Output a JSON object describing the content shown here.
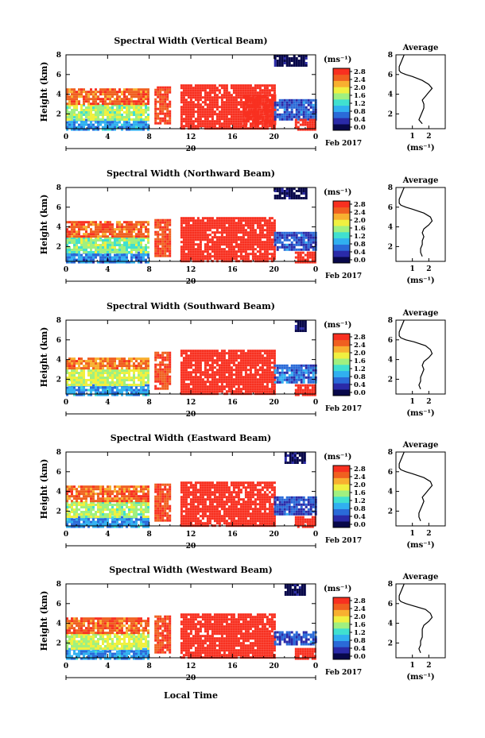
{
  "figure": {
    "panels": [
      {
        "title": "Spectral Width (Vertical Beam)",
        "avg_title": "Average"
      },
      {
        "title": "Spectral Width (Northward Beam)",
        "avg_title": "Average"
      },
      {
        "title": "Spectral Width (Southward Beam)",
        "avg_title": "Average"
      },
      {
        "title": "Spectral Width (Eastward Beam)",
        "avg_title": "Average"
      },
      {
        "title": "Spectral Width (Westward Beam)",
        "avg_title": "Average"
      }
    ],
    "ylabel": "Height (km)",
    "date_day": "20",
    "date_suffix": "Feb 2017",
    "xlabel_bottom": "Local Time",
    "colorbar_unit": "(ms⁻¹)",
    "avg_xlabel": "(ms⁻¹)",
    "colorbar_ticks": [
      "2.8",
      "2.4",
      "2.0",
      "1.6",
      "1.2",
      "0.8",
      "0.4",
      "0.0"
    ],
    "time_ticks": [
      "0",
      "4",
      "8",
      "12",
      "16",
      "20",
      "0"
    ],
    "height_ticks": [
      "8",
      "6",
      "4",
      "2"
    ],
    "avg_x_ticks": [
      "1",
      "2"
    ],
    "colorscale": [
      "#08084a",
      "#2a2aa8",
      "#2a6ad8",
      "#30b0f0",
      "#40e0d0",
      "#a0f080",
      "#f0f040",
      "#f8b030",
      "#f06020",
      "#f83020"
    ]
  },
  "chart_data": [
    {
      "type": "heatmap",
      "title": "Spectral Width (Vertical Beam)",
      "xlabel": "",
      "ylabel": "Height (km)",
      "xlim": [
        0,
        24
      ],
      "ylim": [
        0.5,
        8
      ],
      "colorbar_range": [
        0.0,
        2.8
      ],
      "colorbar_unit": "ms⁻¹",
      "regions": [
        {
          "t": [
            0,
            8
          ],
          "h": [
            0.5,
            1.5
          ],
          "value": 0.9
        },
        {
          "t": [
            0,
            8
          ],
          "h": [
            1.5,
            3.0
          ],
          "value": 1.6
        },
        {
          "t": [
            0,
            8
          ],
          "h": [
            3.0,
            4.6
          ],
          "value": 2.4
        },
        {
          "t": [
            8.5,
            10
          ],
          "h": [
            1.0,
            4.8
          ],
          "value": 2.5
        },
        {
          "t": [
            11,
            20
          ],
          "h": [
            0.5,
            5.0
          ],
          "value": 2.8
        },
        {
          "t": [
            17,
            20
          ],
          "h": [
            1.0,
            4.0
          ],
          "value": 2.8
        },
        {
          "t": [
            20,
            24
          ],
          "h": [
            1.5,
            3.5
          ],
          "value": 0.6
        },
        {
          "t": [
            22,
            24
          ],
          "h": [
            0.5,
            1.5
          ],
          "value": 2.8
        },
        {
          "t": [
            20,
            23
          ],
          "h": [
            7.0,
            8.0
          ],
          "value": 0.1
        }
      ],
      "average": {
        "xlabel": "(ms⁻¹)",
        "xlim": [
          0,
          3
        ],
        "ylim": [
          0.5,
          8
        ],
        "height": [
          8.0,
          7.2,
          6.8,
          6.4,
          6.2,
          6.0,
          5.8,
          5.4,
          5.0,
          4.6,
          4.2,
          3.8,
          3.4,
          3.0,
          2.6,
          2.2,
          1.8,
          1.4,
          1.0
        ],
        "width": [
          0.5,
          0.3,
          0.2,
          0.2,
          0.3,
          0.6,
          1.0,
          1.6,
          2.0,
          2.2,
          2.0,
          1.8,
          1.6,
          1.7,
          1.7,
          1.6,
          1.5,
          1.4,
          1.6
        ]
      }
    },
    {
      "type": "heatmap",
      "title": "Spectral Width (Northward Beam)",
      "xlabel": "",
      "ylabel": "Height (km)",
      "xlim": [
        0,
        24
      ],
      "ylim": [
        0.5,
        8
      ],
      "colorbar_range": [
        0.0,
        2.8
      ],
      "colorbar_unit": "ms⁻¹",
      "regions": [
        {
          "t": [
            0,
            8
          ],
          "h": [
            0.5,
            1.5
          ],
          "value": 0.8
        },
        {
          "t": [
            0,
            8
          ],
          "h": [
            1.5,
            3.0
          ],
          "value": 1.5
        },
        {
          "t": [
            0,
            8
          ],
          "h": [
            3.0,
            4.6
          ],
          "value": 2.4
        },
        {
          "t": [
            8.5,
            10
          ],
          "h": [
            1.0,
            4.8
          ],
          "value": 2.5
        },
        {
          "t": [
            11,
            20
          ],
          "h": [
            0.5,
            5.0
          ],
          "value": 2.8
        },
        {
          "t": [
            20,
            24
          ],
          "h": [
            1.8,
            3.5
          ],
          "value": 0.6
        },
        {
          "t": [
            22,
            24
          ],
          "h": [
            0.5,
            1.5
          ],
          "value": 2.8
        },
        {
          "t": [
            20,
            23
          ],
          "h": [
            7.0,
            8.0
          ],
          "value": 0.1
        }
      ],
      "average": {
        "xlabel": "(ms⁻¹)",
        "xlim": [
          0,
          3
        ],
        "ylim": [
          0.5,
          8
        ],
        "height": [
          8.0,
          7.2,
          6.8,
          6.4,
          6.2,
          6.0,
          5.8,
          5.4,
          5.0,
          4.6,
          4.2,
          3.8,
          3.4,
          3.0,
          2.6,
          2.2,
          1.8,
          1.4,
          1.0
        ],
        "width": [
          0.5,
          0.3,
          0.2,
          0.2,
          0.3,
          0.6,
          1.0,
          1.7,
          2.1,
          2.2,
          2.0,
          1.7,
          1.6,
          1.7,
          1.6,
          1.6,
          1.5,
          1.5,
          1.6
        ]
      }
    },
    {
      "type": "heatmap",
      "title": "Spectral Width (Southward Beam)",
      "xlabel": "",
      "ylabel": "Height (km)",
      "xlim": [
        0,
        24
      ],
      "ylim": [
        0.5,
        8
      ],
      "colorbar_range": [
        0.0,
        2.8
      ],
      "colorbar_unit": "ms⁻¹",
      "regions": [
        {
          "t": [
            0,
            8
          ],
          "h": [
            0.5,
            1.5
          ],
          "value": 0.9
        },
        {
          "t": [
            0,
            8
          ],
          "h": [
            1.5,
            3.0
          ],
          "value": 1.7
        },
        {
          "t": [
            0,
            8
          ],
          "h": [
            3.0,
            4.2
          ],
          "value": 2.3
        },
        {
          "t": [
            8.5,
            10
          ],
          "h": [
            1.0,
            4.8
          ],
          "value": 2.5
        },
        {
          "t": [
            11,
            20
          ],
          "h": [
            0.5,
            5.0
          ],
          "value": 2.8
        },
        {
          "t": [
            20,
            24
          ],
          "h": [
            1.8,
            3.5
          ],
          "value": 0.7
        },
        {
          "t": [
            22,
            24
          ],
          "h": [
            0.5,
            1.5
          ],
          "value": 2.8
        },
        {
          "t": [
            22,
            23
          ],
          "h": [
            7.0,
            8.0
          ],
          "value": 0.1
        }
      ],
      "average": {
        "xlabel": "(ms⁻¹)",
        "xlim": [
          0,
          3
        ],
        "ylim": [
          0.5,
          8
        ],
        "height": [
          8.0,
          7.2,
          6.8,
          6.4,
          6.2,
          6.0,
          5.8,
          5.4,
          5.0,
          4.6,
          4.2,
          3.8,
          3.4,
          3.0,
          2.6,
          2.2,
          1.8,
          1.4,
          1.0
        ],
        "width": [
          0.5,
          0.3,
          0.2,
          0.2,
          0.3,
          0.6,
          1.1,
          1.8,
          2.1,
          2.2,
          2.0,
          1.7,
          1.6,
          1.7,
          1.6,
          1.5,
          1.5,
          1.4,
          1.5
        ]
      }
    },
    {
      "type": "heatmap",
      "title": "Spectral Width (Eastward Beam)",
      "xlabel": "",
      "ylabel": "Height (km)",
      "xlim": [
        0,
        24
      ],
      "ylim": [
        0.5,
        8
      ],
      "colorbar_range": [
        0.0,
        2.8
      ],
      "colorbar_unit": "ms⁻¹",
      "regions": [
        {
          "t": [
            0,
            8
          ],
          "h": [
            0.5,
            1.5
          ],
          "value": 0.9
        },
        {
          "t": [
            0,
            8
          ],
          "h": [
            1.5,
            3.0
          ],
          "value": 1.6
        },
        {
          "t": [
            0,
            8
          ],
          "h": [
            3.0,
            4.6
          ],
          "value": 2.4
        },
        {
          "t": [
            8.5,
            10
          ],
          "h": [
            1.0,
            4.8
          ],
          "value": 2.5
        },
        {
          "t": [
            11,
            20
          ],
          "h": [
            0.5,
            5.0
          ],
          "value": 2.8
        },
        {
          "t": [
            20,
            24
          ],
          "h": [
            1.8,
            3.5
          ],
          "value": 0.6
        },
        {
          "t": [
            22,
            24
          ],
          "h": [
            0.5,
            1.5
          ],
          "value": 2.8
        },
        {
          "t": [
            21,
            23
          ],
          "h": [
            7.0,
            8.0
          ],
          "value": 0.1
        }
      ],
      "average": {
        "xlabel": "(ms⁻¹)",
        "xlim": [
          0,
          3
        ],
        "ylim": [
          0.5,
          8
        ],
        "height": [
          8.0,
          7.2,
          6.8,
          6.4,
          6.2,
          6.0,
          5.8,
          5.4,
          5.0,
          4.6,
          4.2,
          3.8,
          3.4,
          3.0,
          2.6,
          2.2,
          1.8,
          1.4,
          1.0
        ],
        "width": [
          0.5,
          0.3,
          0.2,
          0.2,
          0.3,
          0.6,
          1.0,
          1.7,
          2.1,
          2.2,
          2.0,
          1.8,
          1.6,
          1.7,
          1.6,
          1.5,
          1.4,
          1.4,
          1.5
        ]
      }
    },
    {
      "type": "heatmap",
      "title": "Spectral Width (Westward Beam)",
      "xlabel": "Local Time",
      "ylabel": "Height (km)",
      "xlim": [
        0,
        24
      ],
      "ylim": [
        0.5,
        8
      ],
      "colorbar_range": [
        0.0,
        2.8
      ],
      "colorbar_unit": "ms⁻¹",
      "regions": [
        {
          "t": [
            0,
            8
          ],
          "h": [
            0.5,
            1.5
          ],
          "value": 0.9
        },
        {
          "t": [
            0,
            8
          ],
          "h": [
            1.5,
            3.0
          ],
          "value": 1.7
        },
        {
          "t": [
            0,
            8
          ],
          "h": [
            3.0,
            4.6
          ],
          "value": 2.4
        },
        {
          "t": [
            8.5,
            10
          ],
          "h": [
            1.0,
            4.8
          ],
          "value": 2.5
        },
        {
          "t": [
            11,
            20
          ],
          "h": [
            0.5,
            5.0
          ],
          "value": 2.8
        },
        {
          "t": [
            20,
            24
          ],
          "h": [
            1.8,
            3.2
          ],
          "value": 0.6
        },
        {
          "t": [
            22,
            24
          ],
          "h": [
            0.5,
            1.5
          ],
          "value": 2.8
        },
        {
          "t": [
            21,
            23
          ],
          "h": [
            7.0,
            8.0
          ],
          "value": 0.1
        }
      ],
      "average": {
        "xlabel": "(ms⁻¹)",
        "xlim": [
          0,
          3
        ],
        "ylim": [
          0.5,
          8
        ],
        "height": [
          8.0,
          7.2,
          6.8,
          6.4,
          6.2,
          6.0,
          5.8,
          5.4,
          5.0,
          4.6,
          4.2,
          3.8,
          3.4,
          3.0,
          2.6,
          2.2,
          1.8,
          1.4,
          1.0
        ],
        "width": [
          0.5,
          0.3,
          0.2,
          0.2,
          0.3,
          0.6,
          1.0,
          1.8,
          2.1,
          2.2,
          2.0,
          1.7,
          1.6,
          1.6,
          1.6,
          1.5,
          1.5,
          1.4,
          1.5
        ]
      }
    }
  ]
}
